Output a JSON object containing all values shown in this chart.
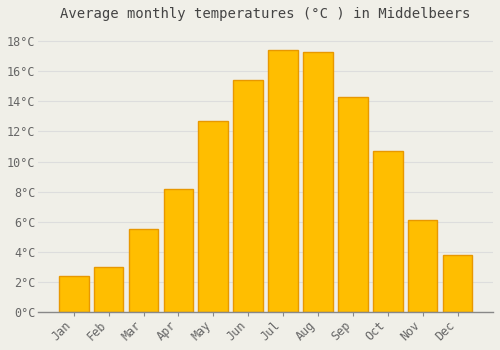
{
  "title": "Average monthly temperatures (°C ) in Middelbeers",
  "months": [
    "Jan",
    "Feb",
    "Mar",
    "Apr",
    "May",
    "Jun",
    "Jul",
    "Aug",
    "Sep",
    "Oct",
    "Nov",
    "Dec"
  ],
  "values": [
    2.4,
    3.0,
    5.5,
    8.2,
    12.7,
    15.4,
    17.4,
    17.3,
    14.3,
    10.7,
    6.1,
    3.8
  ],
  "bar_color": "#FFBE00",
  "bar_edge_color": "#E89800",
  "background_color": "#F0EFE8",
  "plot_bg_color": "#F0EFE8",
  "grid_color": "#DDDDDD",
  "title_fontsize": 10,
  "tick_fontsize": 8.5,
  "ylim": [
    0,
    19
  ],
  "yticks": [
    0,
    2,
    4,
    6,
    8,
    10,
    12,
    14,
    16,
    18
  ],
  "ytick_labels": [
    "0°C",
    "2°C",
    "4°C",
    "6°C",
    "8°C",
    "10°C",
    "12°C",
    "14°C",
    "16°C",
    "18°C"
  ]
}
